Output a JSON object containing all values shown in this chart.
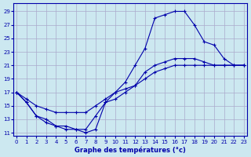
{
  "title": "Graphe des températures (°c)",
  "bg_color": "#cce8f0",
  "grid_color": "#aaaacc",
  "line_color": "#0000aa",
  "xlim": [
    -0.3,
    23.3
  ],
  "ylim": [
    10.5,
    30.2
  ],
  "yticks": [
    11,
    13,
    15,
    17,
    19,
    21,
    23,
    25,
    27,
    29
  ],
  "xticks": [
    0,
    1,
    2,
    3,
    4,
    5,
    6,
    7,
    8,
    9,
    10,
    11,
    12,
    13,
    14,
    15,
    16,
    17,
    18,
    19,
    20,
    21,
    22,
    23
  ],
  "series": [
    {
      "x": [
        0,
        1,
        2,
        3,
        4,
        5,
        6,
        7,
        8,
        9,
        10,
        11,
        12,
        13,
        14,
        15,
        16,
        17,
        18,
        19,
        20,
        21,
        22,
        23
      ],
      "y": [
        17,
        15.5,
        13.5,
        12.5,
        12,
        12,
        11.5,
        11,
        11.5,
        15.5,
        17,
        18.5,
        21,
        23.5,
        28,
        28.5,
        29,
        29,
        27,
        24.5,
        24,
        22,
        21,
        21
      ]
    },
    {
      "x": [
        0,
        1,
        2,
        3,
        4,
        5,
        6,
        7,
        8,
        9,
        10,
        11,
        12,
        13,
        14,
        15,
        16,
        17,
        18,
        19,
        20,
        21,
        22,
        23
      ],
      "y": [
        17,
        16,
        15,
        14.5,
        14,
        14,
        14,
        14,
        15,
        16,
        17,
        17.5,
        18,
        19,
        20,
        20.5,
        21,
        21,
        21,
        21,
        21,
        21,
        21,
        21
      ]
    },
    {
      "x": [
        0,
        1,
        2,
        3,
        4,
        5,
        6,
        7,
        8,
        9,
        10,
        11,
        12,
        13,
        14,
        15,
        16,
        17,
        18,
        19,
        20,
        21,
        22,
        23
      ],
      "y": [
        17,
        15.5,
        13.5,
        13,
        12,
        11.5,
        11.5,
        11.5,
        13.5,
        15.5,
        16,
        17,
        18,
        20,
        21,
        21.5,
        22,
        22,
        22,
        21.5,
        21,
        21,
        21,
        21
      ]
    }
  ]
}
